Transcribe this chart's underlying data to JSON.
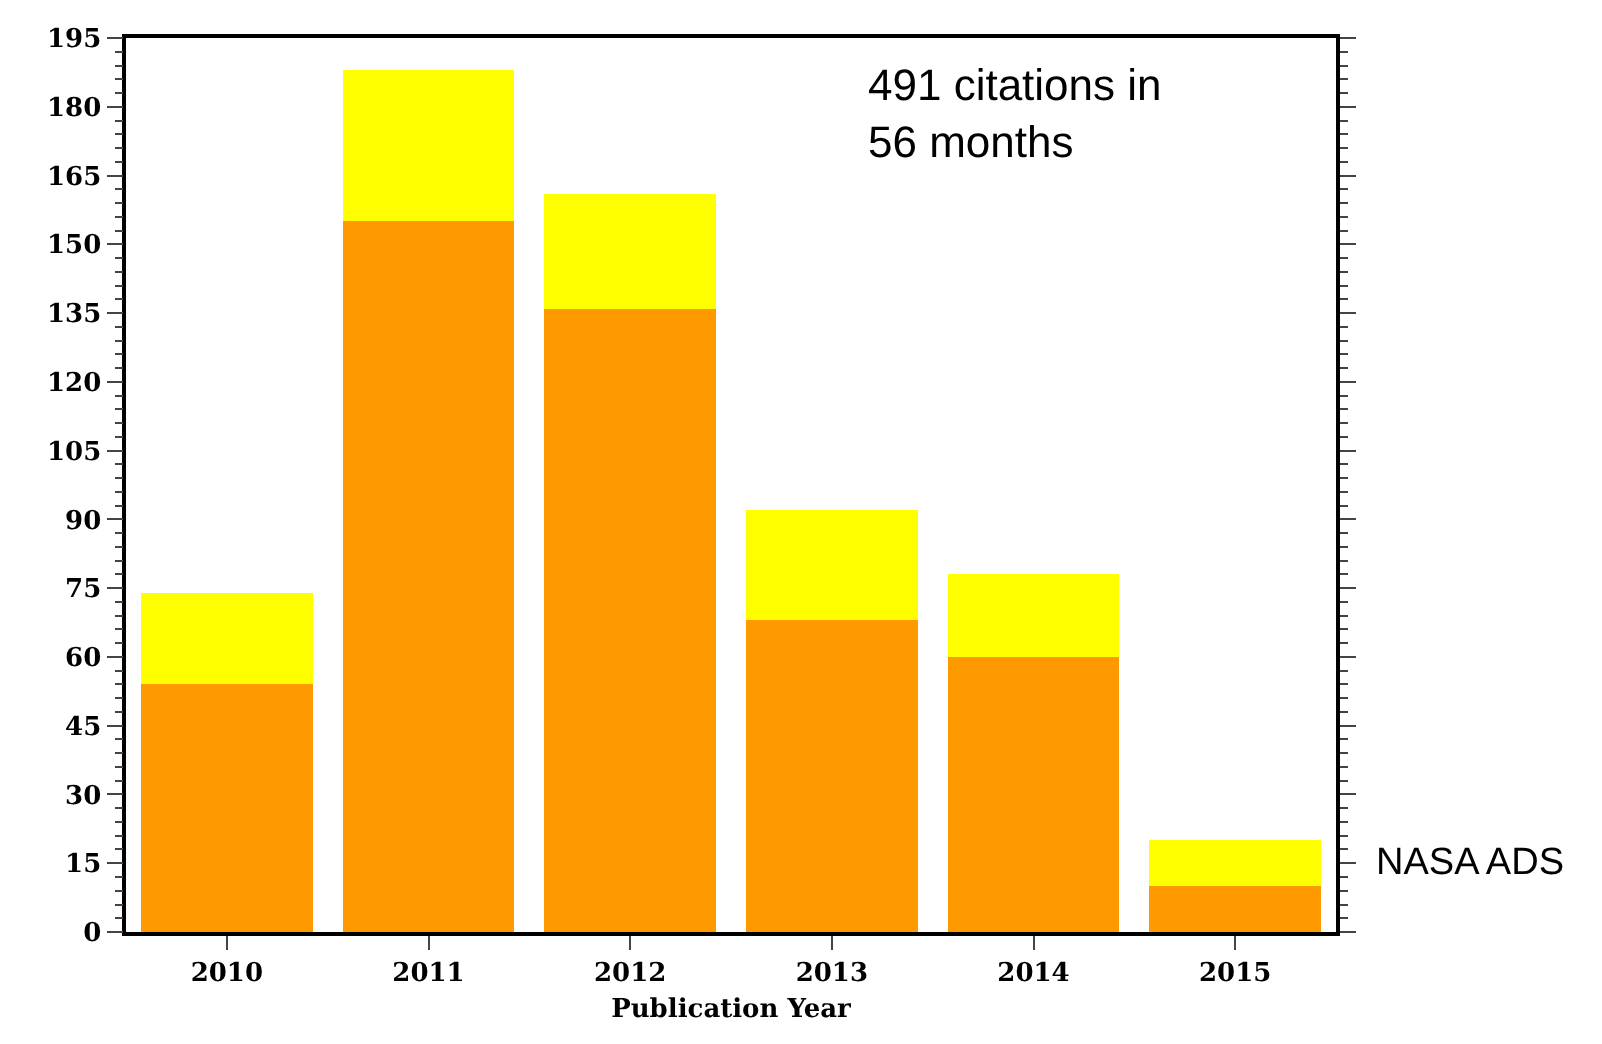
{
  "chart_data": {
    "type": "bar",
    "stacked": true,
    "xlabel": "Publication Year",
    "categories": [
      "2010",
      "2011",
      "2012",
      "2013",
      "2014",
      "2015"
    ],
    "series": [
      {
        "color": "#ff9900",
        "values": [
          54,
          155,
          136,
          68,
          60,
          10
        ]
      },
      {
        "color": "#ffff00",
        "values": [
          20,
          33,
          25,
          24,
          18,
          10
        ]
      }
    ],
    "ylim": [
      0,
      195
    ],
    "yticks": [
      0,
      15,
      30,
      45,
      60,
      75,
      90,
      105,
      120,
      135,
      150,
      165,
      180,
      195
    ],
    "annotations": [
      "491 citations in\n56 months",
      "NASA ADS"
    ]
  }
}
